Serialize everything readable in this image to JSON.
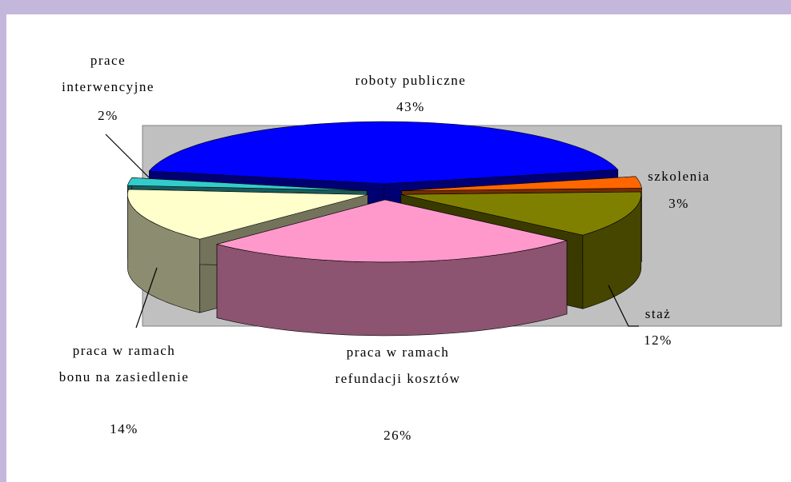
{
  "chart_data": {
    "type": "pie3d",
    "categories": [
      "roboty publiczne",
      "szkolenia",
      "staż",
      "praca w ramach refundacji kosztów",
      "praca w ramach bonu na zasiedlenie",
      "prace interwencyjne"
    ],
    "values": [
      43,
      3,
      12,
      26,
      14,
      2
    ],
    "value_labels": [
      "43%",
      "3%",
      "12%",
      "26%",
      "14%",
      "2%"
    ],
    "colors": [
      "#0000ff",
      "#ff6600",
      "#808000",
      "#ff99cc",
      "#ffffcc",
      "#33cccc"
    ]
  }
}
